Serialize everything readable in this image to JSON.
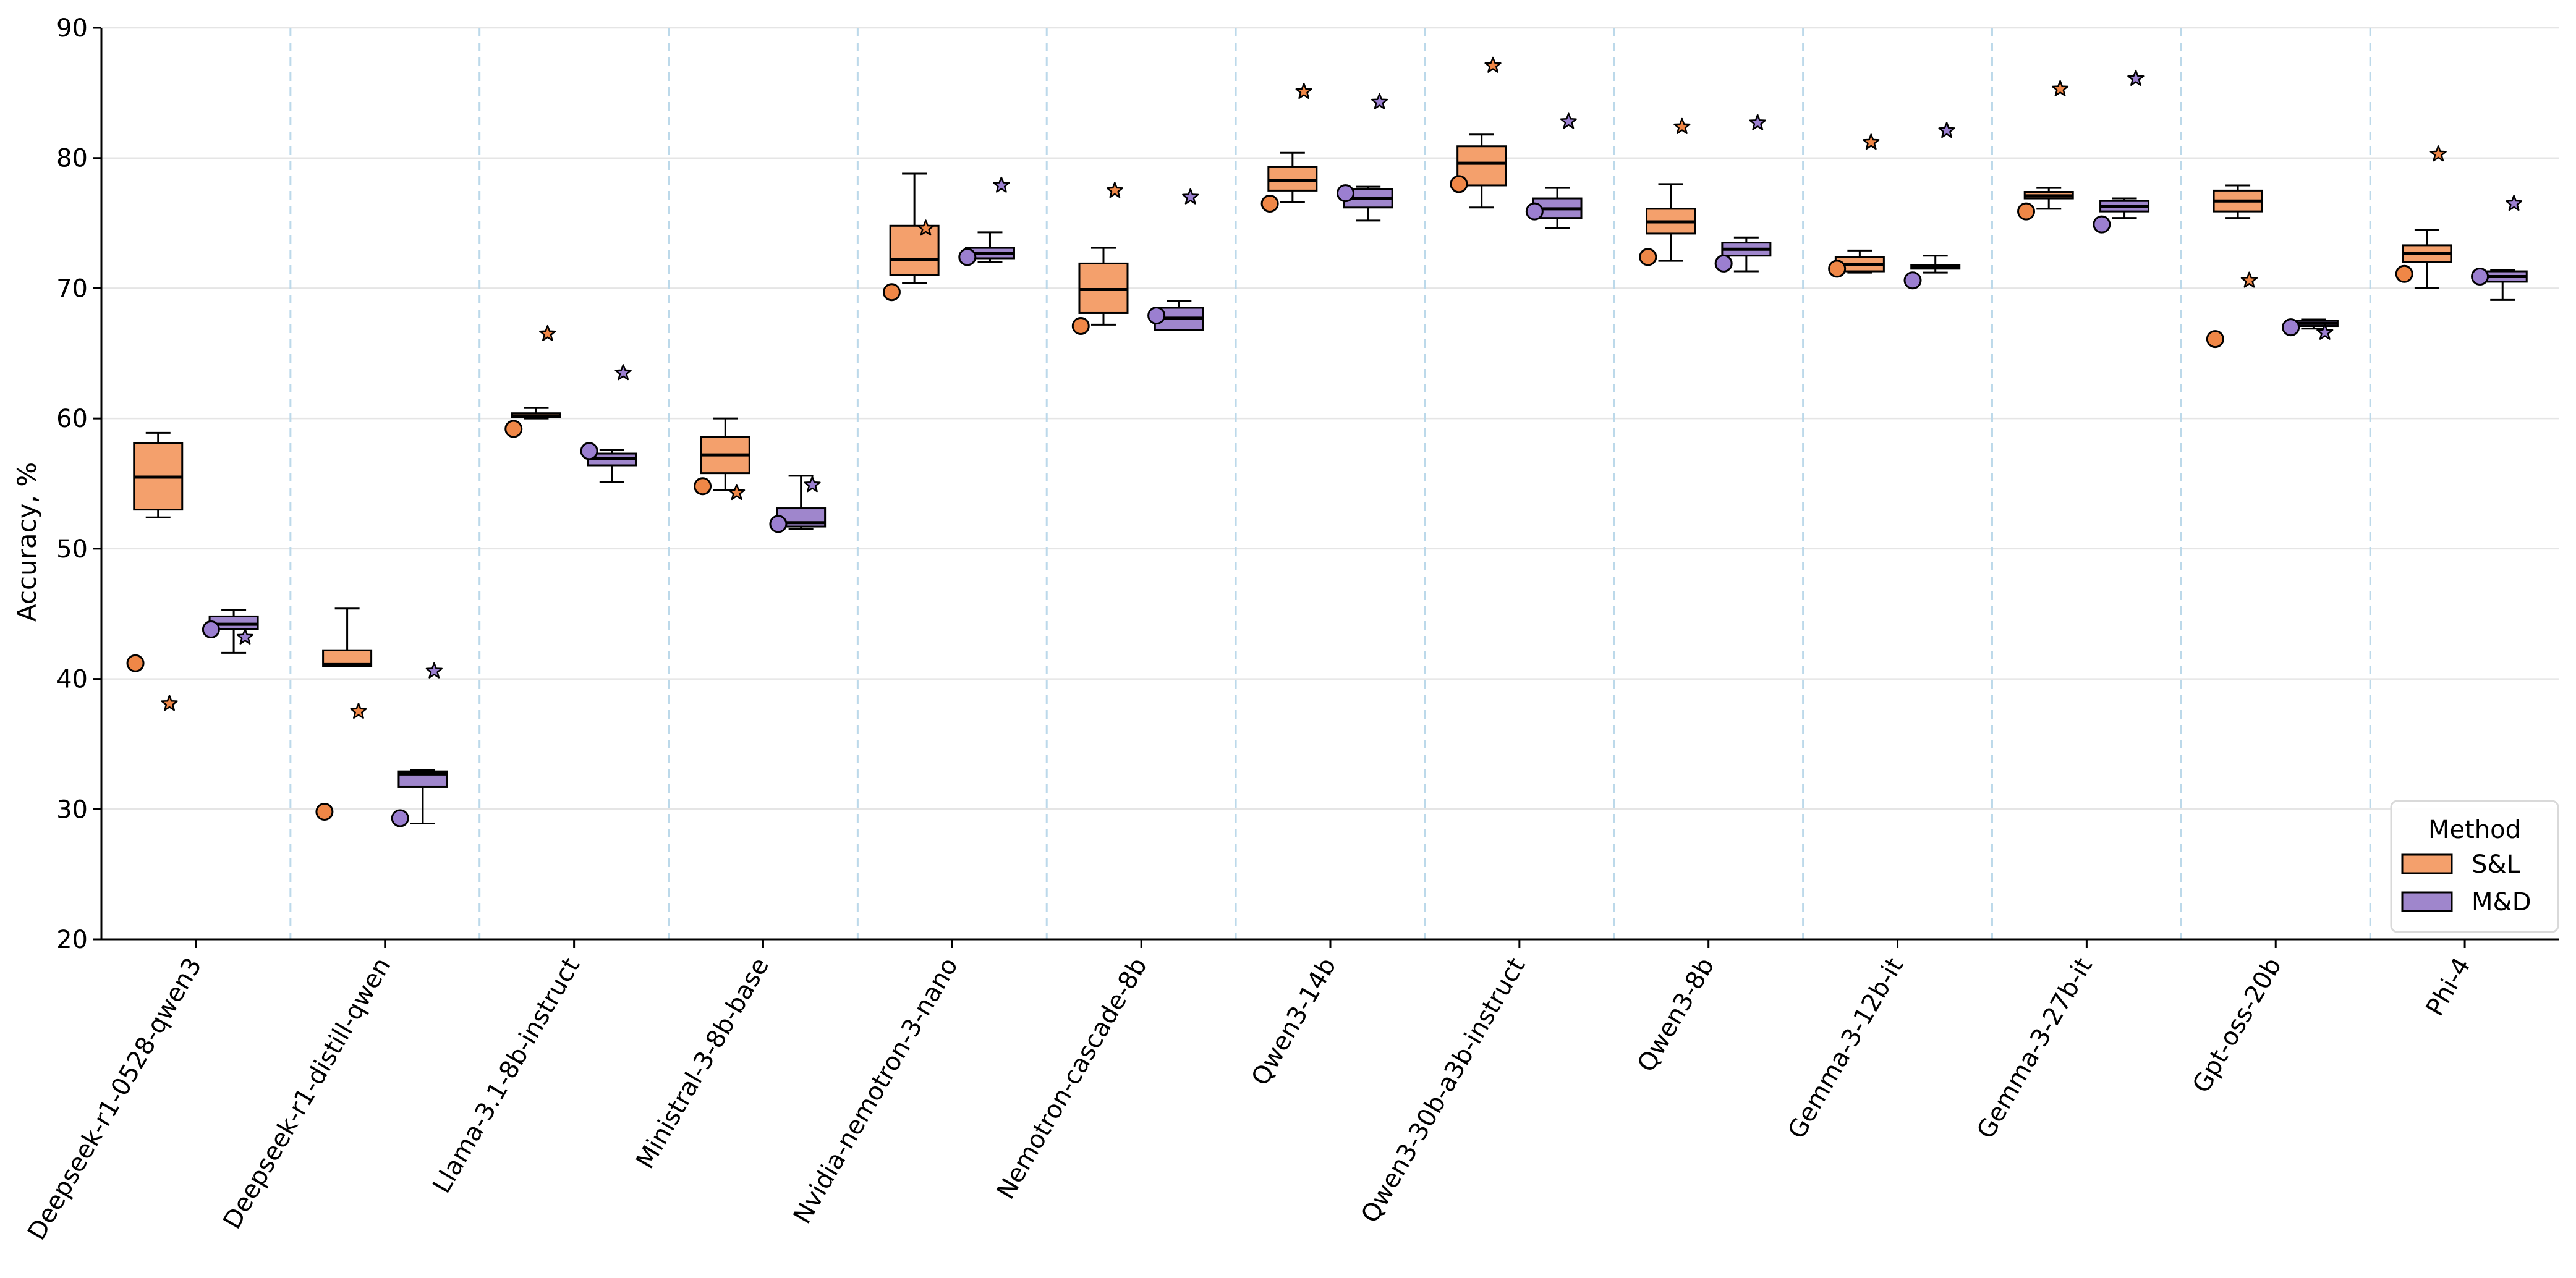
{
  "chart_data": {
    "type": "box",
    "title": "",
    "xlabel": "",
    "ylabel": "Accuracy, %",
    "ylim": [
      20,
      90
    ],
    "yticks": [
      20,
      30,
      40,
      50,
      60,
      70,
      80,
      90
    ],
    "grid": "horizontal",
    "legend": {
      "title": "Method",
      "placement": "bottom-right"
    },
    "markers": {
      "circle": "reference score (circle marker)",
      "star": "reference score (star marker)"
    },
    "categories": [
      "Deepseek-r1-0528-qwen3",
      "Deepseek-r1-distill-qwen",
      "Llama-3.1-8b-instruct",
      "Ministral-3-8b-base",
      "Nvidia-nemotron-3-nano",
      "Nemotron-cascade-8b",
      "Qwen3-14b",
      "Qwen3-30b-a3b-instruct",
      "Qwen3-8b",
      "Gemma-3-12b-it",
      "Gemma-3-27b-it",
      "Gpt-oss-20b",
      "Phi-4"
    ],
    "series": [
      {
        "name": "S&L",
        "color": "#f4a06c",
        "marker_color": "#ef8747",
        "boxes": [
          {
            "min": 52.4,
            "q1": 53.0,
            "median": 55.5,
            "q3": 58.1,
            "max": 58.9,
            "circle": 41.2,
            "star": 38.1
          },
          {
            "min": 41.0,
            "q1": 41.0,
            "median": 41.1,
            "q3": 42.2,
            "max": 45.4,
            "circle": 29.8,
            "star": 37.5
          },
          {
            "min": 60.0,
            "q1": 60.1,
            "median": 60.2,
            "q3": 60.4,
            "max": 60.8,
            "circle": 59.2,
            "star": 66.5
          },
          {
            "min": 54.5,
            "q1": 55.8,
            "median": 57.2,
            "q3": 58.6,
            "max": 60.0,
            "circle": 54.8,
            "star": 54.3
          },
          {
            "min": 70.4,
            "q1": 71.0,
            "median": 72.2,
            "q3": 74.8,
            "max": 78.8,
            "circle": 69.7,
            "star": 74.6
          },
          {
            "min": 67.2,
            "q1": 68.1,
            "median": 69.9,
            "q3": 71.9,
            "max": 73.1,
            "circle": 67.1,
            "star": 77.5
          },
          {
            "min": 76.6,
            "q1": 77.5,
            "median": 78.3,
            "q3": 79.3,
            "max": 80.4,
            "circle": 76.5,
            "star": 85.1
          },
          {
            "min": 76.2,
            "q1": 77.9,
            "median": 79.6,
            "q3": 80.9,
            "max": 81.8,
            "circle": 78.0,
            "star": 87.1
          },
          {
            "min": 72.1,
            "q1": 74.2,
            "median": 75.1,
            "q3": 76.1,
            "max": 78.0,
            "circle": 72.4,
            "star": 82.4
          },
          {
            "min": 71.2,
            "q1": 71.3,
            "median": 71.8,
            "q3": 72.4,
            "max": 72.9,
            "circle": 71.5,
            "star": 81.2
          },
          {
            "min": 76.1,
            "q1": 76.9,
            "median": 77.1,
            "q3": 77.4,
            "max": 77.7,
            "circle": 75.9,
            "star": 85.3
          },
          {
            "min": 75.4,
            "q1": 75.9,
            "median": 76.7,
            "q3": 77.5,
            "max": 77.9,
            "circle": 66.1,
            "star": 70.6
          },
          {
            "min": 70.0,
            "q1": 72.0,
            "median": 72.7,
            "q3": 73.3,
            "max": 74.5,
            "circle": 71.1,
            "star": 80.3
          }
        ]
      },
      {
        "name": "M&D",
        "color": "#9f86cc",
        "marker_color": "#9b7fd0",
        "boxes": [
          {
            "min": 42.0,
            "q1": 43.8,
            "median": 44.2,
            "q3": 44.8,
            "max": 45.3,
            "circle": 43.8,
            "star": 43.2
          },
          {
            "min": 28.9,
            "q1": 31.7,
            "median": 32.7,
            "q3": 32.9,
            "max": 33.0,
            "circle": 29.3,
            "star": 40.6
          },
          {
            "min": 55.1,
            "q1": 56.4,
            "median": 56.9,
            "q3": 57.3,
            "max": 57.6,
            "circle": 57.5,
            "star": 63.5
          },
          {
            "min": 51.5,
            "q1": 51.7,
            "median": 52.0,
            "q3": 53.1,
            "max": 55.6,
            "circle": 51.9,
            "star": 54.9
          },
          {
            "min": 72.0,
            "q1": 72.3,
            "median": 72.7,
            "q3": 73.1,
            "max": 74.3,
            "circle": 72.4,
            "star": 77.9
          },
          {
            "min": 66.8,
            "q1": 66.8,
            "median": 67.7,
            "q3": 68.5,
            "max": 69.0,
            "circle": 67.9,
            "star": 77.0
          },
          {
            "min": 75.2,
            "q1": 76.2,
            "median": 76.9,
            "q3": 77.6,
            "max": 77.8,
            "circle": 77.3,
            "star": 84.3
          },
          {
            "min": 74.6,
            "q1": 75.4,
            "median": 76.1,
            "q3": 76.9,
            "max": 77.7,
            "circle": 75.9,
            "star": 82.8
          },
          {
            "min": 71.3,
            "q1": 72.5,
            "median": 73.0,
            "q3": 73.5,
            "max": 73.9,
            "circle": 71.9,
            "star": 82.7
          },
          {
            "min": 71.2,
            "q1": 71.5,
            "median": 71.6,
            "q3": 71.8,
            "max": 72.5,
            "circle": 70.6,
            "star": 82.1
          },
          {
            "min": 75.4,
            "q1": 75.9,
            "median": 76.3,
            "q3": 76.7,
            "max": 76.9,
            "circle": 74.9,
            "star": 86.1
          },
          {
            "min": 66.9,
            "q1": 67.1,
            "median": 67.3,
            "q3": 67.5,
            "max": 67.6,
            "circle": 67.0,
            "star": 66.6
          },
          {
            "min": 69.1,
            "q1": 70.5,
            "median": 70.9,
            "q3": 71.3,
            "max": 71.4,
            "circle": 70.9,
            "star": 76.5
          }
        ]
      }
    ]
  }
}
